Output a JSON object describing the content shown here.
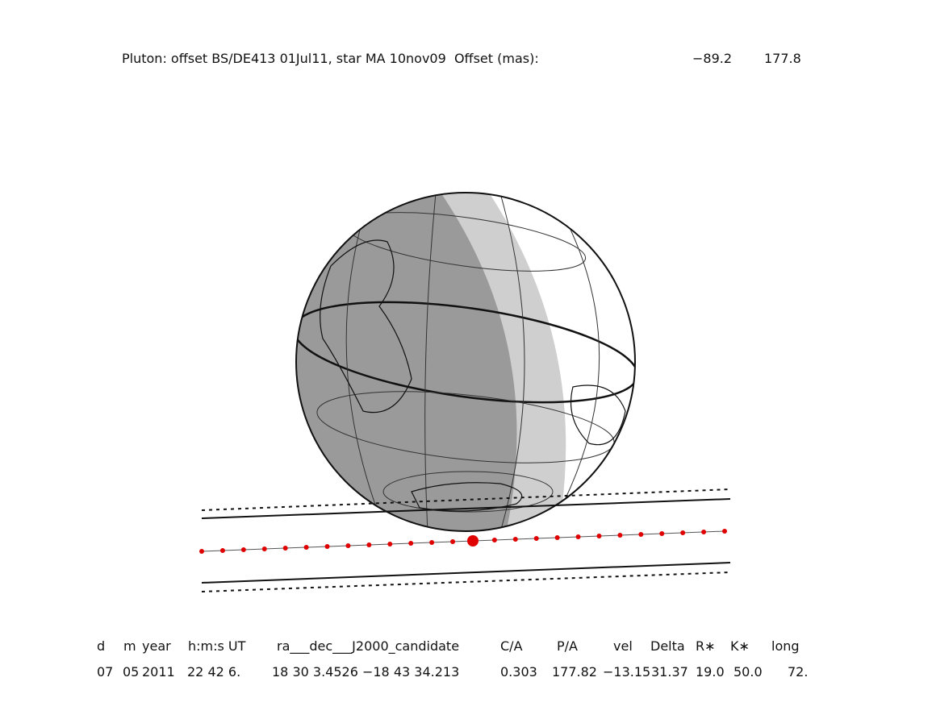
{
  "title": "Pluton: offset BS/DE413 01Jul11, star MA 10nov09  Offset (mas):",
  "offset": [
    "−89.2",
    "177.8"
  ],
  "table": {
    "header": [
      "d",
      "m",
      "year",
      "h:m:s UT",
      "ra___dec___J2000_candidate",
      "C/A",
      "P/A",
      "vel",
      "Delta",
      "R∗",
      "K∗",
      "long"
    ],
    "row": [
      "07",
      "05",
      "2011",
      "22 42 6.",
      "18 30 3.4526 −18 43 34.213",
      "0.303",
      "177.82",
      "−13.15",
      "31.37",
      "19.0",
      "50.0",
      "72."
    ]
  }
}
